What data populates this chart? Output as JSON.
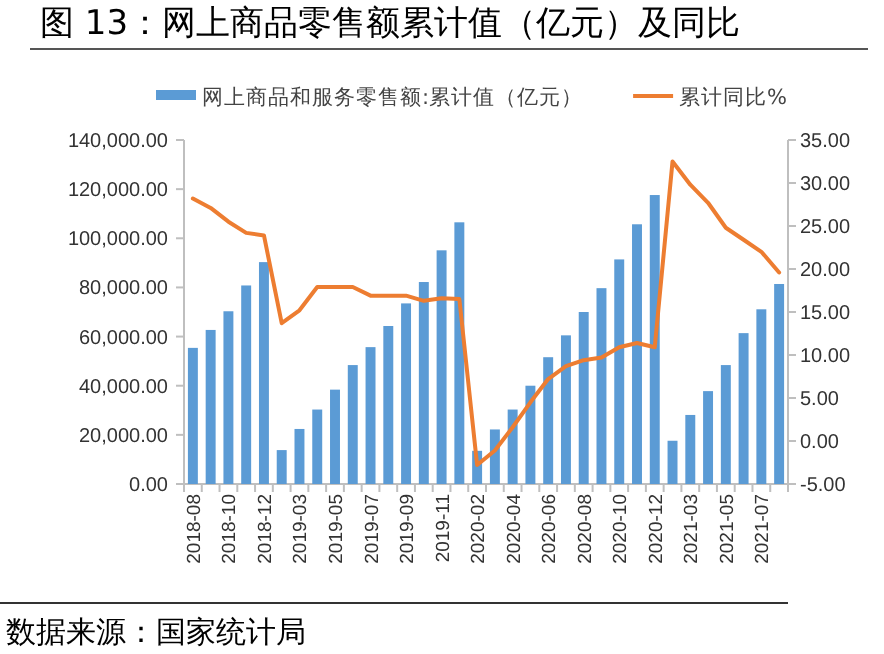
{
  "chart_data": {
    "type": "bar",
    "title": "图 13：网上商品零售额累计值（亿元）及同比",
    "annotations": [
      "数据来源：国家统计局"
    ],
    "categories": [
      "2018-08",
      null,
      "2018-10",
      null,
      "2018-12",
      null,
      "2019-03",
      null,
      "2019-05",
      null,
      "2019-07",
      null,
      "2019-09",
      null,
      "2019-11",
      null,
      "2020-02",
      null,
      "2020-04",
      null,
      "2020-06",
      null,
      "2020-08",
      null,
      "2020-10",
      null,
      "2020-12",
      null,
      "2021-03",
      null,
      "2021-05",
      null,
      "2021-07",
      null
    ],
    "series": [
      {
        "name": "网上商品和服务零售额:累计值（亿元）",
        "color": "#5b9bd5",
        "values": [
          55400,
          62700,
          70300,
          80800,
          90300,
          13800,
          22400,
          30300,
          38400,
          48400,
          55700,
          64300,
          73500,
          82200,
          95100,
          106500,
          13500,
          22200,
          30300,
          40000,
          51600,
          60500,
          70000,
          79700,
          91400,
          105700,
          117600,
          17600,
          28100,
          37800,
          48400,
          61400,
          71100,
          81400
        ]
      },
      {
        "name": "累计同比%",
        "type": "line",
        "axis": "y2",
        "color": "#ed7d31",
        "values": [
          28.2,
          27.1,
          25.5,
          24.2,
          23.9,
          13.7,
          15.2,
          17.9,
          17.9,
          17.9,
          16.9,
          16.9,
          16.9,
          16.3,
          16.6,
          16.5,
          -2.8,
          -1.1,
          1.6,
          4.5,
          7.2,
          8.7,
          9.4,
          9.7,
          10.9,
          11.4,
          10.9,
          32.5,
          29.8,
          27.7,
          24.8,
          23.4,
          22.0,
          19.6
        ]
      }
    ],
    "ylim": [
      0,
      140000
    ],
    "yticks": [
      {
        "value": 0,
        "label": "0.00"
      },
      {
        "value": 20000,
        "label": "20,000.00"
      },
      {
        "value": 40000,
        "label": "40,000.00"
      },
      {
        "value": 60000,
        "label": "60,000.00"
      },
      {
        "value": 80000,
        "label": "80,000.00"
      },
      {
        "value": 100000,
        "label": "100,000.00"
      },
      {
        "value": 120000,
        "label": "120,000.00"
      },
      {
        "value": 140000,
        "label": "140,000.00"
      }
    ],
    "y2lim": [
      -5,
      35
    ],
    "y2ticks": [
      {
        "value": -5,
        "label": "-5.00"
      },
      {
        "value": 0,
        "label": "0.00"
      },
      {
        "value": 5,
        "label": "5.00"
      },
      {
        "value": 10,
        "label": "10.00"
      },
      {
        "value": 15,
        "label": "15.00"
      },
      {
        "value": 20,
        "label": "20.00"
      },
      {
        "value": 25,
        "label": "25.00"
      },
      {
        "value": 30,
        "label": "30.00"
      },
      {
        "value": 35,
        "label": "35.00"
      }
    ],
    "legend": "top"
  }
}
